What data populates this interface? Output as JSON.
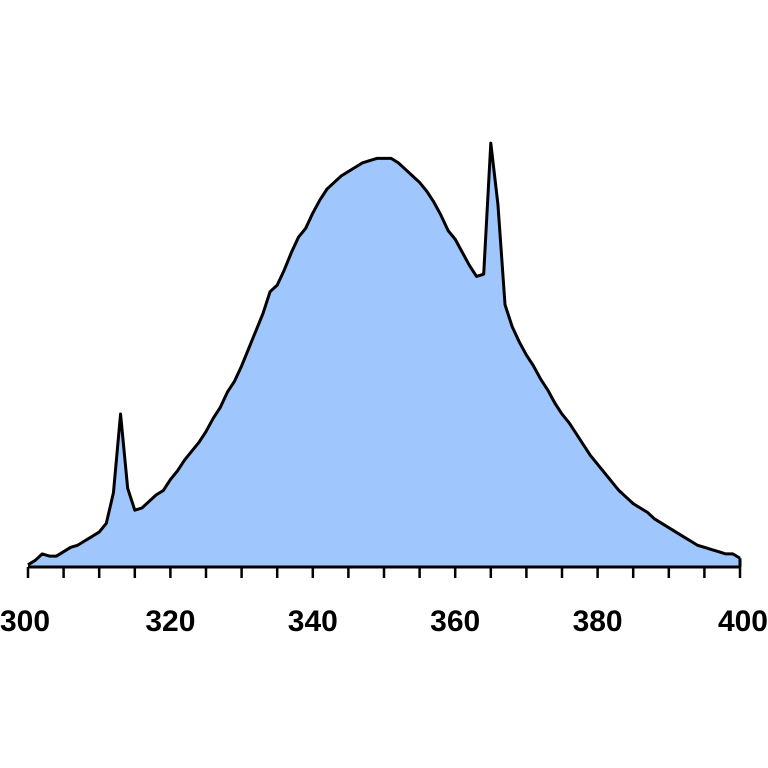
{
  "chart_data": {
    "type": "area",
    "title": "",
    "xlabel": "",
    "ylabel": "",
    "xlim": [
      300,
      400
    ],
    "ylim": [
      0,
      100
    ],
    "grid": false,
    "fill_color": "#9fc6fd",
    "line_color": "#000000",
    "x_ticks": [
      300,
      320,
      340,
      360,
      380,
      400
    ],
    "x_tick_labels": [
      "300",
      "320",
      "340",
      "360",
      "380",
      "400"
    ],
    "x_minor_step": 5,
    "series": [
      {
        "x": [
          300,
          301,
          302,
          303,
          304,
          305,
          306,
          307,
          308,
          309,
          310,
          311,
          312,
          313,
          314,
          315,
          316,
          317,
          318,
          319,
          320,
          321,
          322,
          323,
          324,
          325,
          326,
          327,
          328,
          329,
          330,
          331,
          332,
          333,
          334,
          335,
          336,
          337,
          338,
          339,
          340,
          341,
          342,
          343,
          344,
          345,
          346,
          347,
          348,
          349,
          350,
          351,
          352,
          353,
          354,
          355,
          356,
          357,
          358,
          359,
          360,
          361,
          362,
          363,
          364,
          365,
          366,
          367,
          368,
          369,
          370,
          371,
          372,
          373,
          374,
          375,
          376,
          377,
          378,
          379,
          380,
          381,
          382,
          383,
          384,
          385,
          386,
          387,
          388,
          389,
          390,
          391,
          392,
          393,
          394,
          395,
          396,
          397,
          398,
          399,
          400
        ],
        "y": [
          0.5,
          1.5,
          3,
          2.5,
          2.5,
          3.5,
          4.5,
          5,
          6,
          7,
          8,
          10,
          17,
          35,
          18,
          13,
          13.5,
          15,
          16.5,
          17.5,
          20,
          22,
          24.5,
          26.5,
          28.5,
          31,
          34,
          36.5,
          40,
          42.5,
          46,
          50,
          54,
          58,
          63,
          64.5,
          68,
          72,
          75.5,
          77.5,
          81,
          84,
          86.5,
          88,
          89.5,
          90.5,
          91.5,
          92.5,
          93,
          93.5,
          93.5,
          93.5,
          92.5,
          91,
          89.5,
          88,
          86,
          83.5,
          80.5,
          77,
          75,
          72,
          69,
          66.5,
          67,
          97,
          83,
          60,
          55,
          51.5,
          48.5,
          46,
          43,
          40.5,
          37.5,
          35,
          33,
          30.5,
          28,
          25.5,
          23.5,
          21.5,
          19.5,
          17.5,
          16,
          14.5,
          13.5,
          12.5,
          11,
          10,
          9,
          8,
          7,
          6,
          5,
          4.5,
          4,
          3.5,
          3,
          3,
          2
        ]
      }
    ]
  }
}
